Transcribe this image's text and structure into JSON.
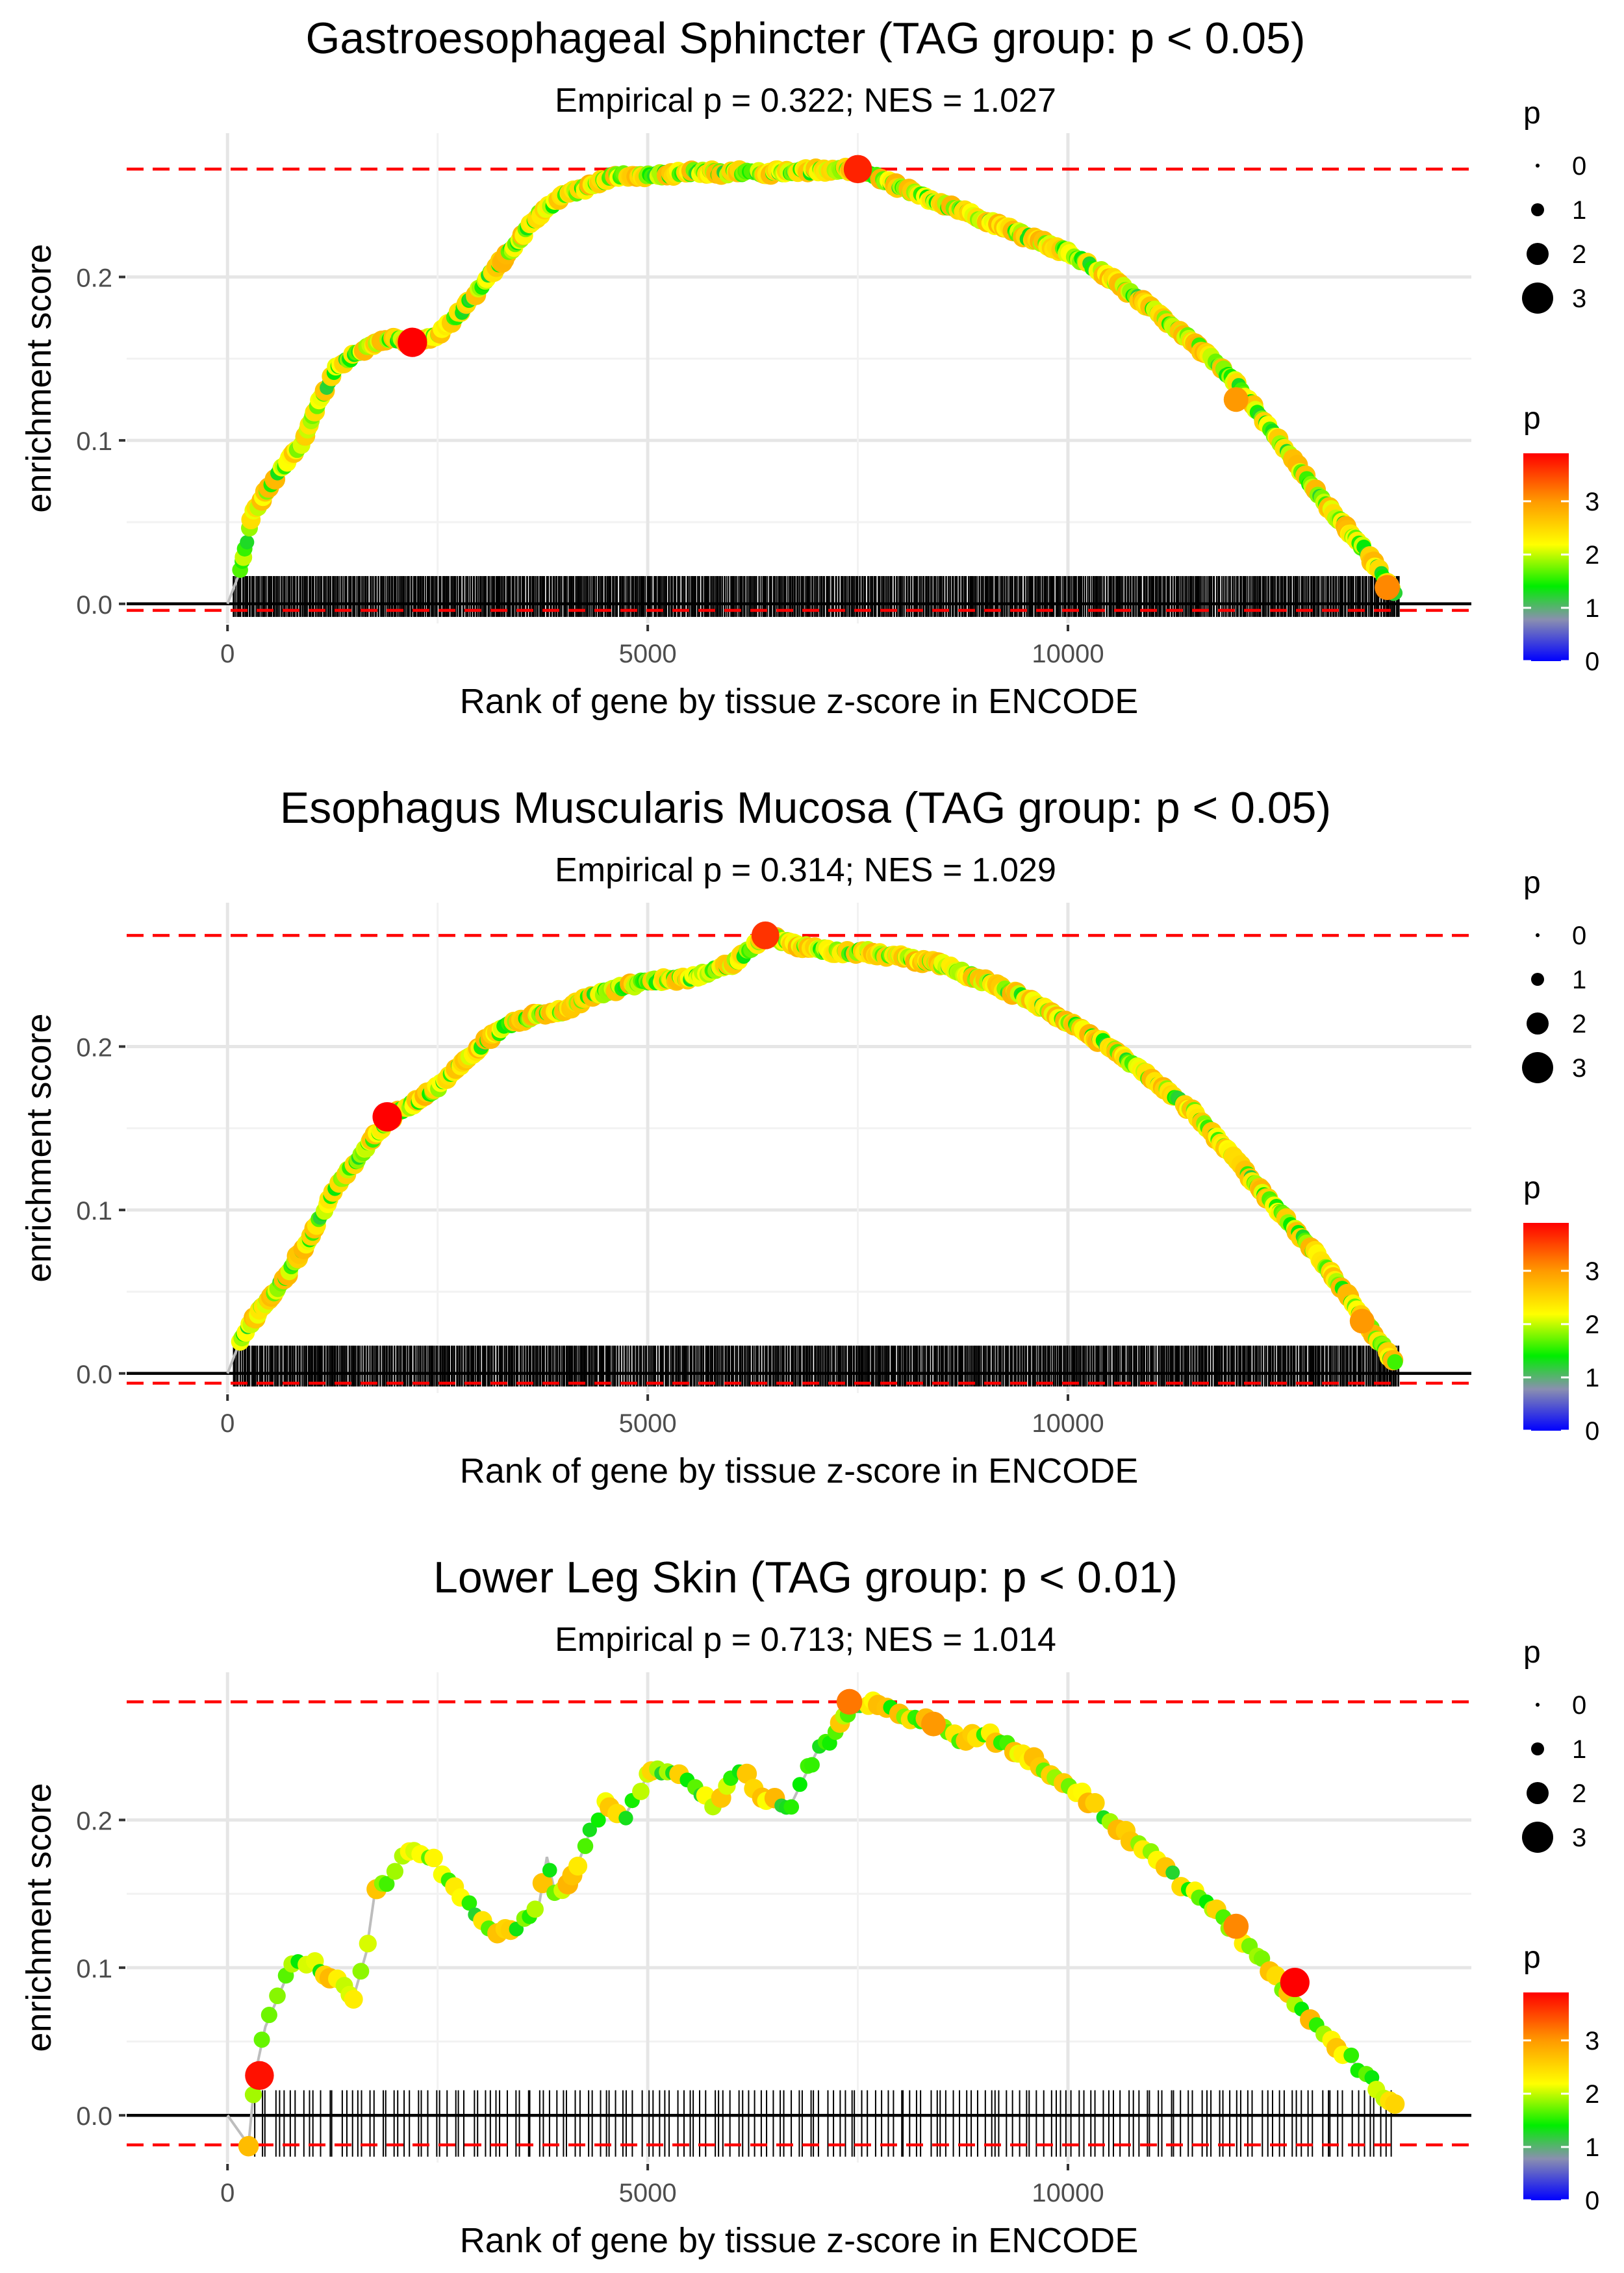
{
  "figure": {
    "panel_count": 3
  },
  "chart_data": [
    {
      "type": "line",
      "title": "Gastroesophageal Sphincter (TAG group: p < 0.05)",
      "subtitle": "Empirical p = 0.322; NES = 1.027",
      "xlabel": "Rank of gene by tissue z-score in ENCODE",
      "ylabel": "enrichment score",
      "xlim": [
        -1200,
        14800
      ],
      "ylim": [
        -0.012,
        0.288
      ],
      "x_ticks": [
        0,
        5000,
        10000
      ],
      "x_tick_labels": [
        "0",
        "5000",
        "10000"
      ],
      "y_ticks": [
        0.0,
        0.1,
        0.2
      ],
      "y_tick_labels": [
        "0.0",
        "0.1",
        "0.2"
      ],
      "dashed_lines": [
        0.266,
        -0.004
      ],
      "zero_line": 0,
      "rug_hits": 880,
      "rug_range": [
        60,
        13950
      ],
      "curve": {
        "x": [
          0,
          150,
          300,
          600,
          900,
          1100,
          1300,
          1600,
          1900,
          2200,
          2500,
          2800,
          3100,
          3400,
          3700,
          4000,
          4300,
          4600,
          5000,
          5500,
          6000,
          6500,
          7000,
          7500,
          8000,
          8500,
          9000,
          9500,
          10000,
          10500,
          11000,
          11500,
          12000,
          12500,
          13000,
          13500,
          13900
        ],
        "y": [
          0,
          0.02,
          0.055,
          0.08,
          0.1,
          0.125,
          0.145,
          0.155,
          0.162,
          0.16,
          0.165,
          0.18,
          0.2,
          0.218,
          0.238,
          0.25,
          0.255,
          0.262,
          0.262,
          0.264,
          0.264,
          0.264,
          0.265,
          0.266,
          0.255,
          0.245,
          0.235,
          0.225,
          0.215,
          0.2,
          0.18,
          0.16,
          0.135,
          0.1,
          0.065,
          0.035,
          0.005
        ]
      },
      "highlight_points": [
        {
          "x": 2200,
          "y": 0.16,
          "p": 3.9
        },
        {
          "x": 7500,
          "y": 0.266,
          "p": 3.7
        },
        {
          "x": 12000,
          "y": 0.125,
          "p": 3.0
        },
        {
          "x": 13800,
          "y": 0.01,
          "p": 3.1
        }
      ],
      "legend_size": {
        "title": "p",
        "labels": [
          "0",
          "1",
          "2",
          "3"
        ]
      },
      "legend_color": {
        "title": "p",
        "labels": [
          "0",
          "1",
          "2",
          "3"
        ],
        "colors": [
          "#0000ff",
          "#8a8fb0",
          "#00ee00",
          "#ffff00",
          "#ff9900",
          "#ff0000"
        ]
      }
    },
    {
      "type": "line",
      "title": "Esophagus Muscularis Mucosa (TAG group: p < 0.05)",
      "subtitle": "Empirical p = 0.314; NES = 1.029",
      "xlabel": "Rank of gene by tissue z-score in ENCODE",
      "ylabel": "enrichment score",
      "xlim": [
        -1200,
        14800
      ],
      "ylim": [
        -0.012,
        0.288
      ],
      "x_ticks": [
        0,
        5000,
        10000
      ],
      "x_tick_labels": [
        "0",
        "5000",
        "10000"
      ],
      "y_ticks": [
        0.0,
        0.1,
        0.2
      ],
      "y_tick_labels": [
        "0.0",
        "0.1",
        "0.2"
      ],
      "dashed_lines": [
        0.268,
        -0.006
      ],
      "zero_line": 0,
      "rug_hits": 900,
      "rug_range": [
        60,
        13950
      ],
      "curve": {
        "x": [
          0,
          150,
          400,
          700,
          1000,
          1300,
          1600,
          1900,
          2200,
          2500,
          2800,
          3100,
          3400,
          3700,
          4000,
          4300,
          4600,
          5000,
          5500,
          6000,
          6400,
          6800,
          7200,
          7600,
          8000,
          8500,
          9000,
          9500,
          10000,
          10500,
          11000,
          11500,
          12000,
          12500,
          13000,
          13500,
          13900
        ],
        "y": [
          0,
          0.02,
          0.04,
          0.06,
          0.085,
          0.115,
          0.135,
          0.155,
          0.165,
          0.175,
          0.19,
          0.205,
          0.215,
          0.22,
          0.222,
          0.23,
          0.235,
          0.24,
          0.242,
          0.25,
          0.268,
          0.262,
          0.258,
          0.258,
          0.255,
          0.25,
          0.24,
          0.23,
          0.215,
          0.2,
          0.18,
          0.16,
          0.13,
          0.1,
          0.07,
          0.035,
          0.005
        ]
      },
      "highlight_points": [
        {
          "x": 1900,
          "y": 0.157,
          "p": 3.9
        },
        {
          "x": 6400,
          "y": 0.268,
          "p": 3.6
        },
        {
          "x": 13500,
          "y": 0.032,
          "p": 3.0
        }
      ],
      "legend_size": {
        "title": "p",
        "labels": [
          "0",
          "1",
          "2",
          "3"
        ]
      },
      "legend_color": {
        "title": "p",
        "labels": [
          "0",
          "1",
          "2",
          "3"
        ],
        "colors": [
          "#0000ff",
          "#8a8fb0",
          "#00ee00",
          "#ffff00",
          "#ff9900",
          "#ff0000"
        ]
      }
    },
    {
      "type": "line",
      "title": "Lower Leg Skin (TAG group: p < 0.01)",
      "subtitle": "Empirical p = 0.713; NES = 1.014",
      "xlabel": "Rank of gene by tissue z-score in ENCODE",
      "ylabel": "enrichment score",
      "xlim": [
        -1200,
        14800
      ],
      "ylim": [
        -0.032,
        0.3
      ],
      "x_ticks": [
        0,
        5000,
        10000
      ],
      "x_tick_labels": [
        "0",
        "5000",
        "10000"
      ],
      "y_ticks": [
        0.0,
        0.1,
        0.2
      ],
      "y_tick_labels": [
        "0.0",
        "0.1",
        "0.2"
      ],
      "dashed_lines": [
        0.28,
        -0.02
      ],
      "zero_line": 0,
      "rug_hits": 190,
      "rug_range": [
        300,
        13900
      ],
      "curve": {
        "x": [
          0,
          250,
          330,
          450,
          600,
          750,
          900,
          1100,
          1300,
          1500,
          1650,
          1750,
          1900,
          2100,
          2350,
          2600,
          2900,
          3200,
          3500,
          3700,
          3800,
          3900,
          4100,
          4300,
          4500,
          4700,
          5000,
          5300,
          5500,
          5800,
          6100,
          6400,
          6700,
          7000,
          7200,
          7400,
          7600,
          7800,
          8100,
          8400,
          8700,
          9000,
          9300,
          9600,
          10000,
          10500,
          11000,
          11500,
          12000,
          12500,
          13000,
          13500,
          13900
        ],
        "y": [
          0,
          -0.02,
          0.028,
          0.06,
          0.08,
          0.1,
          0.105,
          0.1,
          0.09,
          0.08,
          0.11,
          0.15,
          0.16,
          0.175,
          0.18,
          0.16,
          0.14,
          0.12,
          0.13,
          0.14,
          0.175,
          0.15,
          0.16,
          0.19,
          0.21,
          0.2,
          0.23,
          0.235,
          0.225,
          0.21,
          0.235,
          0.215,
          0.21,
          0.245,
          0.255,
          0.275,
          0.28,
          0.275,
          0.27,
          0.265,
          0.255,
          0.26,
          0.25,
          0.24,
          0.225,
          0.2,
          0.175,
          0.15,
          0.125,
          0.09,
          0.06,
          0.03,
          0.005
        ]
      },
      "highlight_points": [
        {
          "x": 380,
          "y": 0.027,
          "p": 3.8
        },
        {
          "x": 7400,
          "y": 0.28,
          "p": 3.2
        },
        {
          "x": 8400,
          "y": 0.265,
          "p": 3.0
        },
        {
          "x": 12000,
          "y": 0.128,
          "p": 3.1
        },
        {
          "x": 12700,
          "y": 0.09,
          "p": 3.9
        }
      ],
      "legend_size": {
        "title": "p",
        "labels": [
          "0",
          "1",
          "2",
          "3"
        ]
      },
      "legend_color": {
        "title": "p",
        "labels": [
          "0",
          "1",
          "2",
          "3"
        ],
        "colors": [
          "#0000ff",
          "#8a8fb0",
          "#00ee00",
          "#ffff00",
          "#ff9900",
          "#ff0000"
        ]
      }
    }
  ]
}
